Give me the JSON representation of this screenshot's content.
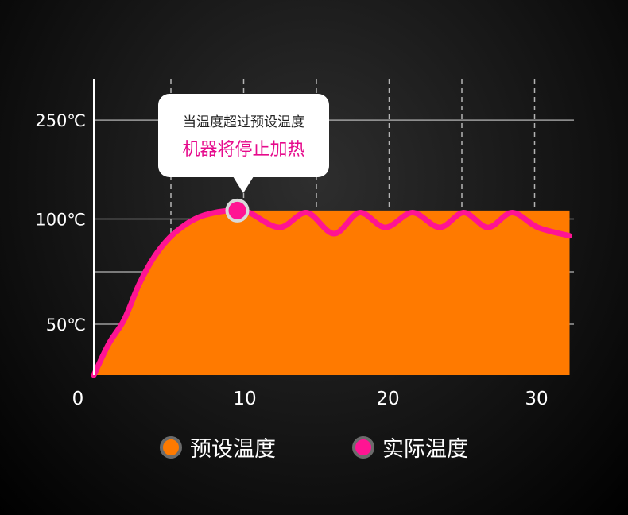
{
  "chart_data": {
    "type": "area",
    "xlim": [
      0,
      33
    ],
    "x_ticks": [
      0,
      10,
      20,
      30
    ],
    "x_tick_labels": [
      "0",
      "10",
      "20",
      "30"
    ],
    "y_ticks": [
      50,
      100,
      250
    ],
    "y_tick_labels": [
      "50℃",
      "100℃",
      "250℃"
    ],
    "series": [
      {
        "name": "预设温度",
        "color": "#ff7a00",
        "x": [
          1,
          2,
          3,
          4,
          5,
          6,
          7,
          8,
          9,
          10,
          10.5,
          11,
          12,
          14,
          16,
          18,
          20,
          22,
          24,
          26,
          28,
          30,
          31,
          32.5
        ],
        "y": [
          0,
          31,
          52,
          69,
          82,
          91,
          97,
          101,
          103,
          104,
          104,
          104,
          104,
          104,
          104,
          104,
          104,
          104,
          104,
          104,
          104,
          104,
          104,
          104
        ]
      },
      {
        "name": "实际温度",
        "color": "#ff1493",
        "x": [
          1,
          2,
          3,
          4,
          5,
          6,
          7,
          8,
          9,
          10,
          10.5,
          11.3,
          13.3,
          15.1,
          16.9,
          18.6,
          20.3,
          22.1,
          23.9,
          25.5,
          27.1,
          28.7,
          30.4,
          32.5
        ],
        "y": [
          0,
          31,
          52,
          69,
          82,
          91,
          97,
          101,
          103,
          104,
          104,
          103,
          96,
          103,
          93,
          103,
          96,
          103,
          96,
          103,
          96,
          103,
          96,
          92
        ]
      }
    ],
    "highlight_point": {
      "x": 10.5,
      "y": 104
    },
    "grid": true
  },
  "callout": {
    "line1": "当温度超过预设温度",
    "line2": "机器将停止加热"
  },
  "legend": [
    {
      "label": "预设温度",
      "color": "#ff7a00"
    },
    {
      "label": "实际温度",
      "color": "#ff1493"
    }
  ]
}
